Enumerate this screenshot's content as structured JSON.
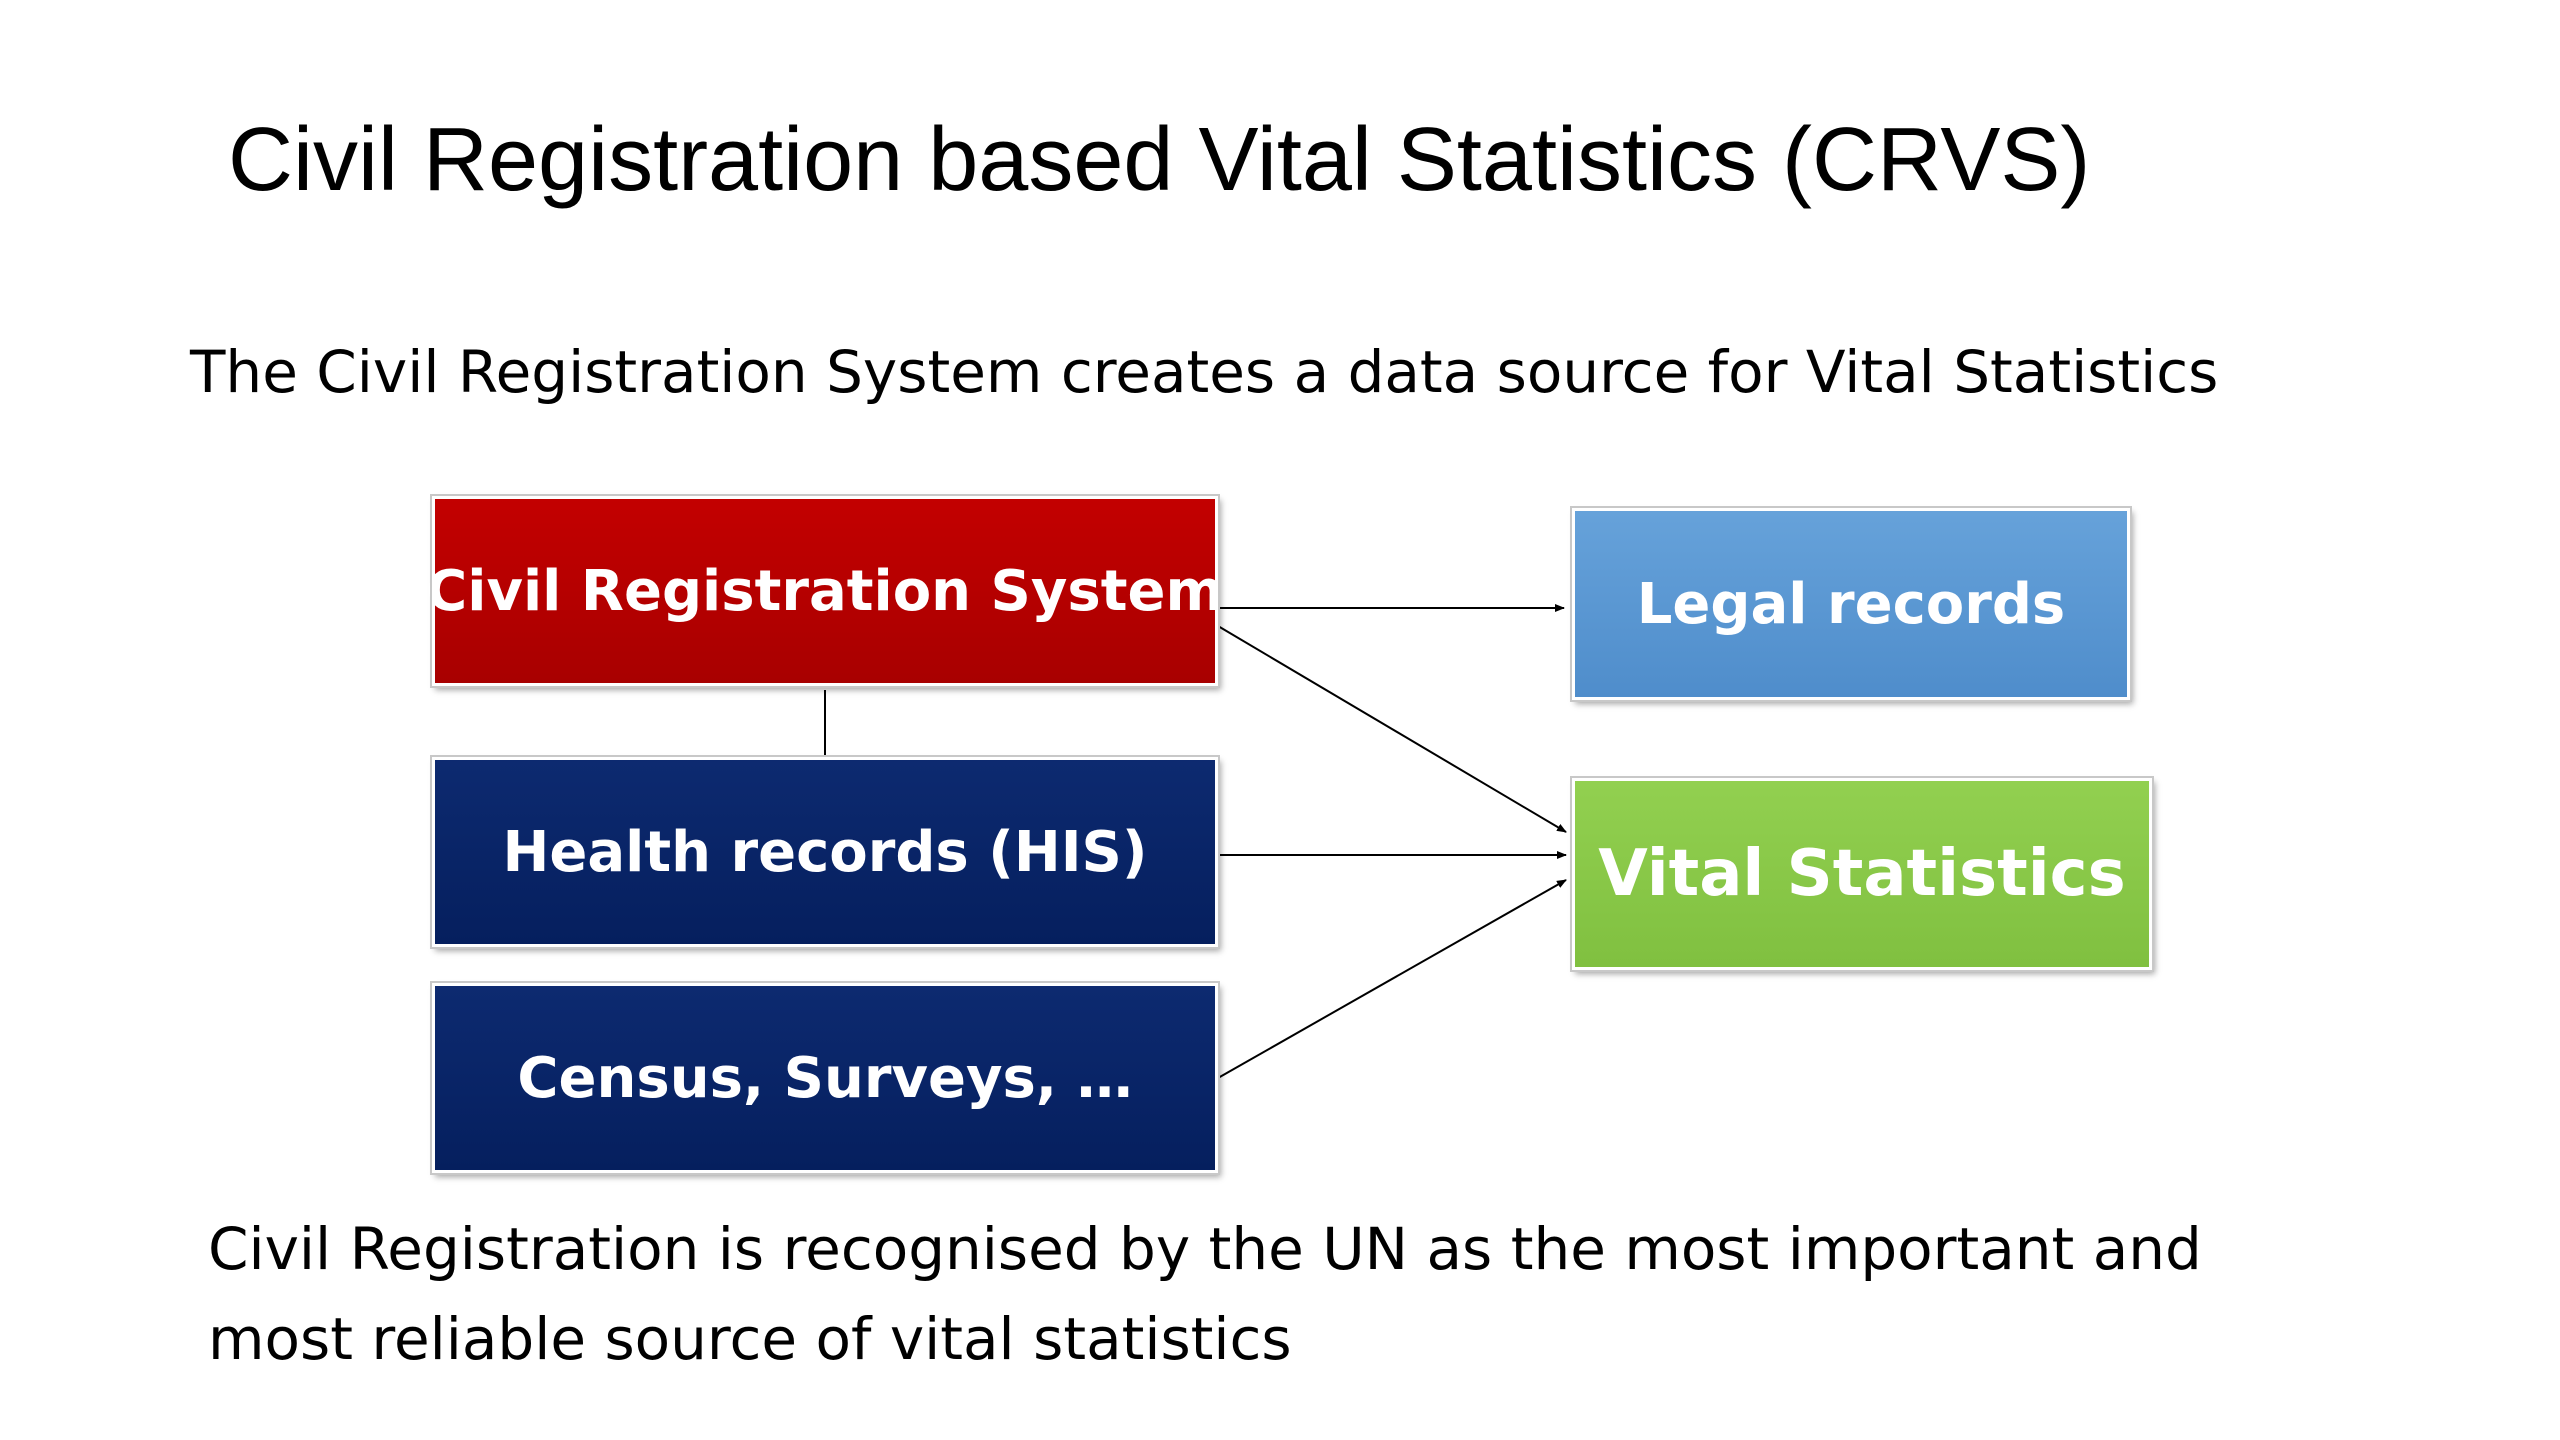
{
  "title": "Civil Registration based Vital Statistics (CRVS)",
  "subtitle": "The Civil Registration System creates a data source for Vital Statistics",
  "nodes": {
    "civil_registration": "Civil Registration System",
    "health_records": "Health records (HIS)",
    "census_surveys": "Census, Surveys, …",
    "legal_records": "Legal records",
    "vital_statistics": "Vital Statistics"
  },
  "colors": {
    "civil_registration": "#b30000",
    "health_records": "#06205f",
    "census_surveys": "#06205f",
    "legal_records": "#5b97d3",
    "vital_statistics": "#8bc94a"
  },
  "footnote": {
    "line1": "Civil Registration is recognised by the UN as the most important  and",
    "line2": "most reliable source of vital statistics"
  }
}
